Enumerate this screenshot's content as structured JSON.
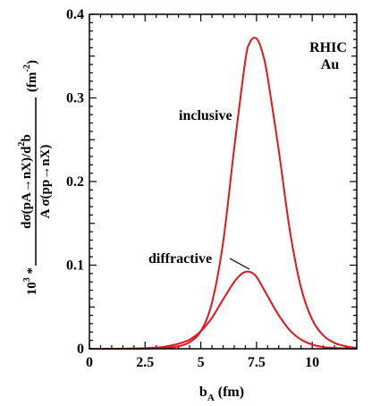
{
  "chart_data": {
    "type": "line",
    "xlabel": {
      "main": "b",
      "sub": "A",
      "unit": " (fm)"
    },
    "ylabel": {
      "prefix": "10",
      "prefix_sup": "3",
      "times": " *",
      "numerator": "dσ(pA→nX)/d",
      "numerator_sup": "2",
      "numerator_tail": "b",
      "denominator": "A σ(pp→nX)",
      "unit_open": "(fm",
      "unit_sup": "-2",
      "unit_close": ")"
    },
    "xlim": [
      0,
      12
    ],
    "ylim": [
      0,
      0.4
    ],
    "x_ticks": [
      "0",
      "2.5",
      "5",
      "7.5",
      "10"
    ],
    "x_tick_values": [
      0,
      2.5,
      5,
      7.5,
      10
    ],
    "y_ticks": [
      "0",
      "0.1",
      "0.2",
      "0.3",
      "0.4"
    ],
    "y_tick_values": [
      0,
      0.1,
      0.2,
      0.3,
      0.4
    ],
    "annotations": {
      "system_line1": "RHIC",
      "system_line2": "Au",
      "inclusive": "inclusive",
      "diffractive": "diffractive"
    },
    "line_color": "#e8141b",
    "series": [
      {
        "name": "inclusive",
        "x": [
          0,
          1,
          2,
          3,
          3.5,
          4,
          4.5,
          5,
          5.5,
          6,
          6.5,
          7,
          7.2,
          7.4,
          7.6,
          7.8,
          8,
          8.5,
          9,
          9.5,
          10,
          10.5,
          11,
          11.5,
          12
        ],
        "y": [
          0,
          0,
          0.0001,
          0.0005,
          0.0012,
          0.003,
          0.008,
          0.021,
          0.055,
          0.127,
          0.24,
          0.345,
          0.366,
          0.372,
          0.367,
          0.351,
          0.325,
          0.237,
          0.141,
          0.073,
          0.035,
          0.016,
          0.007,
          0.003,
          0.001
        ]
      },
      {
        "name": "diffractive",
        "x": [
          0,
          1,
          2,
          3,
          3.5,
          4,
          4.5,
          5,
          5.5,
          6,
          6.5,
          6.8,
          7,
          7.2,
          7.4,
          7.6,
          8,
          8.5,
          9,
          9.5,
          10,
          10.5,
          11,
          11.5,
          12
        ],
        "y": [
          0,
          0.0001,
          0.0004,
          0.0015,
          0.003,
          0.006,
          0.011,
          0.021,
          0.037,
          0.059,
          0.08,
          0.089,
          0.092,
          0.092,
          0.089,
          0.082,
          0.063,
          0.04,
          0.022,
          0.011,
          0.005,
          0.002,
          0.001,
          0.0005,
          0.0002
        ]
      }
    ]
  }
}
